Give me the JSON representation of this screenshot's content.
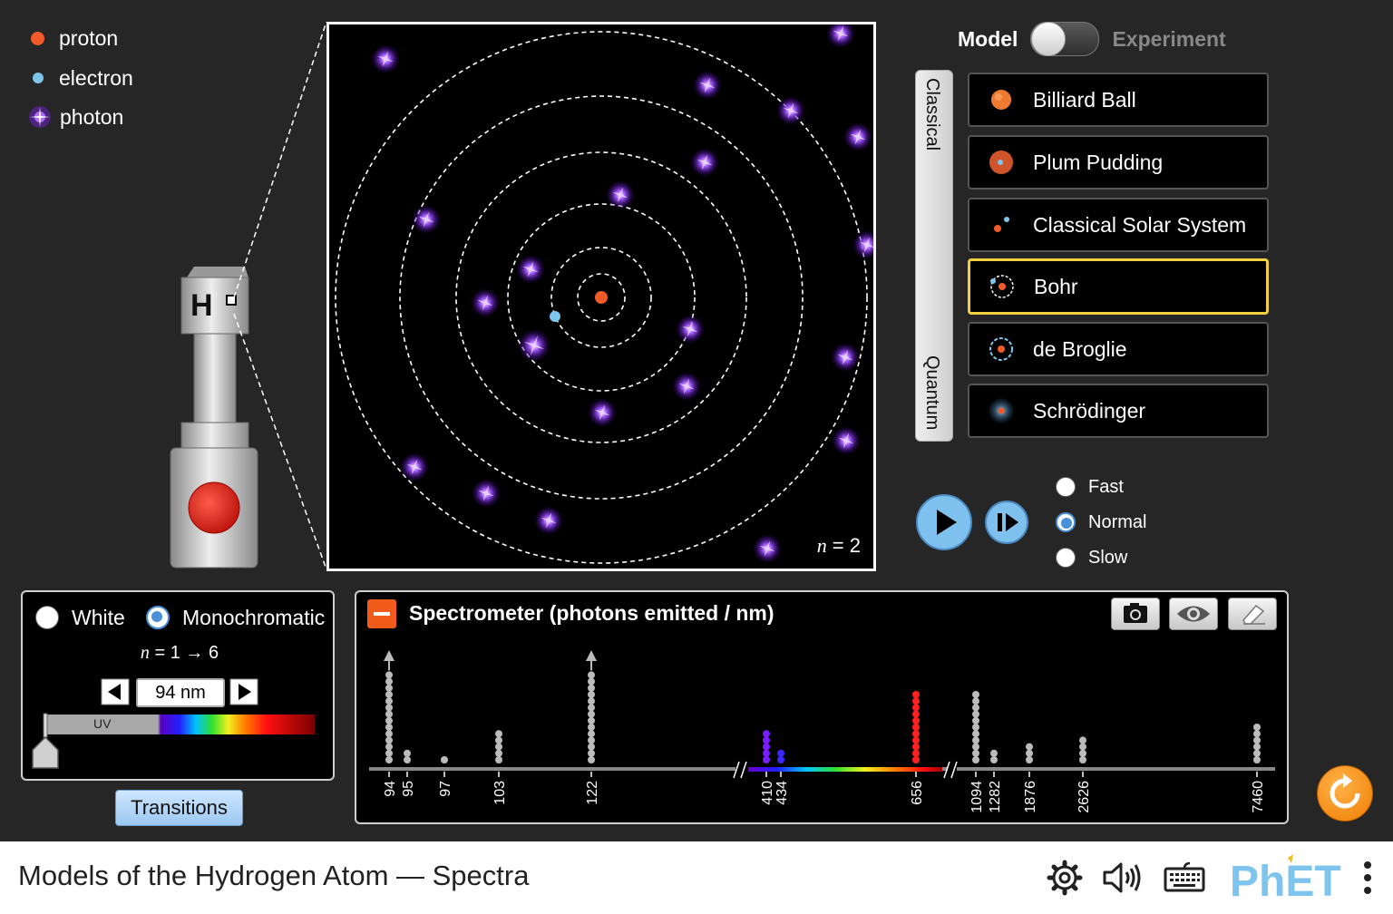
{
  "legend": [
    {
      "label": "proton",
      "color": "#f25a2a"
    },
    {
      "label": "electron",
      "color": "#7ec5ec"
    },
    {
      "label": "photon",
      "color": "#8a2be2"
    }
  ],
  "gun": {
    "element_label": "H"
  },
  "atom_view": {
    "n_symbol": "n",
    "n_eq": " = 2"
  },
  "model_toggle": {
    "left_label": "Model",
    "right_label": "Experiment"
  },
  "cq_bar": {
    "classical": "Classical",
    "quantum": "Quantum"
  },
  "models": [
    {
      "label": "Billiard Ball",
      "selected": false
    },
    {
      "label": "Plum Pudding",
      "selected": false
    },
    {
      "label": "Classical Solar System",
      "selected": false
    },
    {
      "label": "Bohr",
      "selected": true
    },
    {
      "label": "de Broglie",
      "selected": false
    },
    {
      "label": "Schrödinger",
      "selected": false
    }
  ],
  "speed": {
    "options": [
      "Fast",
      "Normal",
      "Slow"
    ],
    "selected": "Normal"
  },
  "light_source": {
    "white_label": "White",
    "mono_label": "Monochromatic",
    "selected": "Monochromatic",
    "transition_n": "n",
    "transition_text": " = 1 → 6",
    "wavelength": "94 nm",
    "uv_label": "UV"
  },
  "transitions_button": "Transitions",
  "spectrometer": {
    "title": "Spectrometer (photons emitted / nm)",
    "tick_labels": [
      "94",
      "95",
      "97",
      "103",
      "122",
      "410",
      "434",
      "656",
      "1094",
      "1282",
      "1876",
      "2626",
      "7460"
    ]
  },
  "footer": {
    "title": "Models of the Hydrogen Atom — Spectra"
  }
}
